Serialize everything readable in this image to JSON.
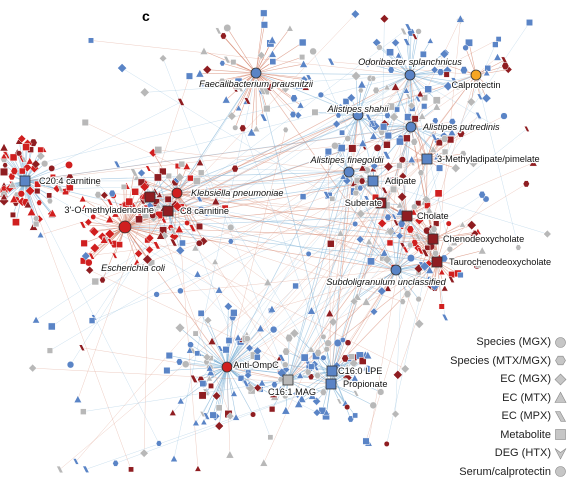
{
  "panel_label": "c",
  "colors": {
    "red": "#d01f1f",
    "dark_red": "#8f1d21",
    "blue": "#5a84c6",
    "grey": "#b8b8b8",
    "orange": "#f5a623",
    "edge_positive": "#d4826a",
    "edge_negative": "#7fb2d6"
  },
  "hubs": [
    {
      "id": "faecali",
      "label": "Faecalibacterium prausnitzii",
      "italic": true,
      "shape": "circle",
      "color": "blue"
    },
    {
      "id": "odori",
      "label": "Odoribacter splanchnicus",
      "italic": true,
      "shape": "circle",
      "color": "blue"
    },
    {
      "id": "calpro",
      "label": "Calprotectin",
      "italic": false,
      "shape": "circle",
      "color": "orange"
    },
    {
      "id": "shahii",
      "label": "Alistipes shahii",
      "italic": true,
      "shape": "circle",
      "color": "blue"
    },
    {
      "id": "putred",
      "label": "Alistipes putredinis",
      "italic": true,
      "shape": "circle",
      "color": "blue"
    },
    {
      "id": "finegoldii",
      "label": "Alistipes finegoldii",
      "italic": true,
      "shape": "circle",
      "color": "blue"
    },
    {
      "id": "methyladip",
      "label": "3-Methyladipate/pimelate",
      "italic": false,
      "shape": "square",
      "color": "blue"
    },
    {
      "id": "adipate",
      "label": "Adipate",
      "italic": false,
      "shape": "square",
      "color": "blue"
    },
    {
      "id": "suberate",
      "label": "Suberate",
      "italic": false,
      "shape": "square",
      "color": "dark_red"
    },
    {
      "id": "cholate",
      "label": "Cholate",
      "italic": false,
      "shape": "square",
      "color": "dark_red"
    },
    {
      "id": "cheno",
      "label": "Chenodeoxycholate",
      "italic": false,
      "shape": "square",
      "color": "dark_red"
    },
    {
      "id": "tauro",
      "label": "Taurochenodeoxycholate",
      "italic": false,
      "shape": "square",
      "color": "dark_red"
    },
    {
      "id": "subdoli",
      "label": "Subdoligranulum unclassified",
      "italic": true,
      "shape": "circle",
      "color": "blue"
    },
    {
      "id": "c204",
      "label": "C20:4 carnitine",
      "italic": false,
      "shape": "square",
      "color": "blue"
    },
    {
      "id": "omethyl",
      "label": "3'-O-methyladenosine",
      "italic": false,
      "shape": "square",
      "color": "dark_red"
    },
    {
      "id": "klebs",
      "label": "Klebsiella pneumoniae",
      "italic": true,
      "shape": "circle",
      "color": "red"
    },
    {
      "id": "c8",
      "label": "C8 carnitine",
      "italic": false,
      "shape": "square",
      "color": "dark_red"
    },
    {
      "id": "ecoli",
      "label": "Escherichia coli",
      "italic": true,
      "shape": "circle",
      "color": "red"
    },
    {
      "id": "antiompc",
      "label": "Anti-OmpC",
      "italic": false,
      "shape": "circle",
      "color": "red"
    },
    {
      "id": "c160lpe",
      "label": "C16:0 LPE",
      "italic": false,
      "shape": "square",
      "color": "blue"
    },
    {
      "id": "propionate",
      "label": "Propionate",
      "italic": false,
      "shape": "square",
      "color": "blue"
    },
    {
      "id": "c161mag",
      "label": "C16:1 MAG",
      "italic": false,
      "shape": "square",
      "color": "grey"
    }
  ],
  "legend": [
    {
      "label": "Species (MGX)",
      "shape": "circle"
    },
    {
      "label": "Species (MTX/MGX)",
      "shape": "hexagon"
    },
    {
      "label": "EC (MGX)",
      "shape": "diamond"
    },
    {
      "label": "EC (MTX)",
      "shape": "triangle"
    },
    {
      "label": "EC (MPX)",
      "shape": "parallelogram"
    },
    {
      "label": "Metabolite",
      "shape": "square"
    },
    {
      "label": "DEG (HTX)",
      "shape": "chevron"
    },
    {
      "label": "Serum/calprotectin",
      "shape": "circle"
    }
  ]
}
